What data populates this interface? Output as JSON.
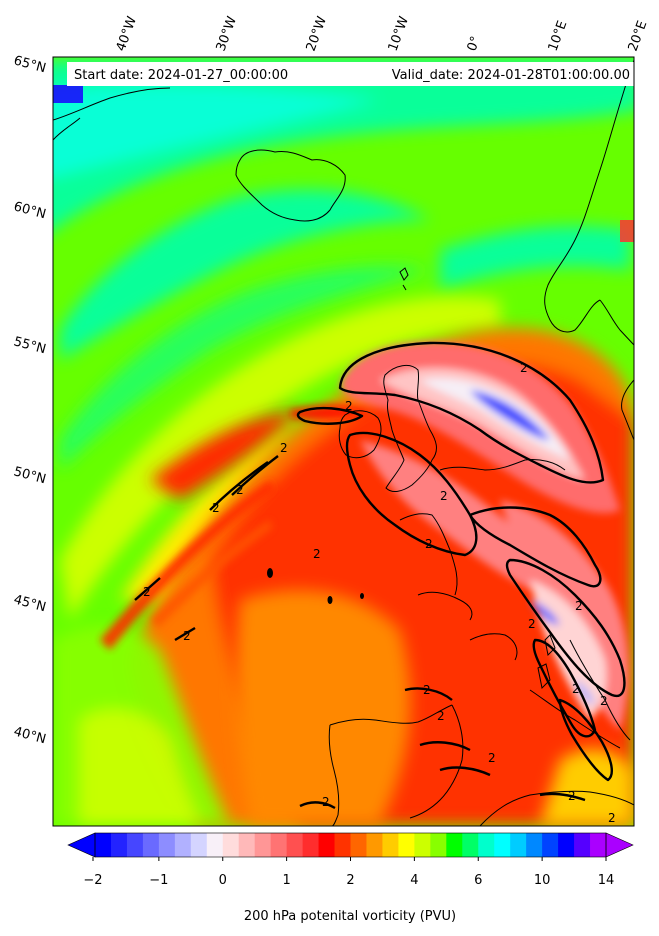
{
  "map": {
    "header": {
      "start_date": "Start date: 2024-01-27_00:00:00",
      "valid_date": "Valid_date: 2024-01-28T01:00:00.00"
    },
    "lon_labels": [
      "40°W",
      "30°W",
      "20°W",
      "10°W",
      "0°",
      "10°E",
      "20°E"
    ],
    "lat_labels": [
      "65°N",
      "60°N",
      "55°N",
      "50°N",
      "45°N",
      "40°N"
    ],
    "contour_labels": [
      "2",
      "2",
      "2",
      "2",
      "2",
      "2",
      "2",
      "2",
      "2",
      "2",
      "2",
      "2",
      "2",
      "2",
      "2",
      "2",
      "2",
      "2",
      "2",
      "2"
    ],
    "variable": "200 hPa potential vorticity",
    "units": "PVU",
    "contour_level": 2
  },
  "colorbar": {
    "label": "200 hPa potenital vorticity (PVU)",
    "ticks": [
      "−2",
      "−1",
      "0",
      "1",
      "2",
      "4",
      "6",
      "10",
      "14"
    ],
    "colors": [
      "#0000ff",
      "#2323ff",
      "#4646ff",
      "#6a6aff",
      "#8d8dff",
      "#b1b1ff",
      "#d4d4ff",
      "#f8f0f8",
      "#ffdcdc",
      "#ffb9b9",
      "#ff9696",
      "#ff7373",
      "#ff5050",
      "#ff2d2d",
      "#ff0000",
      "#ff3300",
      "#ff6600",
      "#ff9900",
      "#ffcc00",
      "#ffff00",
      "#ccff00",
      "#88ff00",
      "#00ff00",
      "#00ff66",
      "#00ffcc",
      "#00ffff",
      "#00ccff",
      "#0088ff",
      "#0044ff",
      "#0000ff",
      "#5500ff",
      "#aa00ff"
    ],
    "extend": "both"
  },
  "colors": {
    "background_field": "#66ff00",
    "coast": "#000000",
    "contour": "#000000"
  }
}
